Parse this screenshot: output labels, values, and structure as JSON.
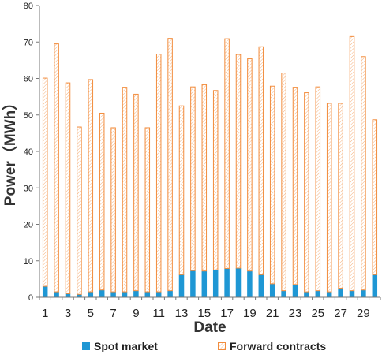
{
  "chart_data": {
    "type": "bar",
    "stacked": true,
    "xlabel": "Date",
    "ylabel": "Power（MWh）",
    "ylim": [
      0,
      80
    ],
    "yticks": [
      0,
      10,
      20,
      30,
      40,
      50,
      60,
      70,
      80
    ],
    "categories": [
      "1",
      "2",
      "3",
      "4",
      "5",
      "6",
      "7",
      "8",
      "9",
      "10",
      "11",
      "12",
      "13",
      "14",
      "15",
      "16",
      "17",
      "18",
      "19",
      "20",
      "21",
      "22",
      "23",
      "24",
      "25",
      "26",
      "27",
      "28",
      "29",
      "30"
    ],
    "xtick_labels_shown": [
      "1",
      "3",
      "5",
      "7",
      "9",
      "11",
      "13",
      "15",
      "17",
      "19",
      "21",
      "23",
      "25",
      "27",
      "29"
    ],
    "series": [
      {
        "name": "Spot market",
        "color": "#1f97d4",
        "values": [
          3,
          1.5,
          1,
          0.8,
          1.5,
          2,
          1.5,
          1.5,
          1.8,
          1.5,
          1.5,
          1.8,
          6.2,
          7.3,
          7.2,
          7.5,
          7.9,
          8,
          7.2,
          6.2,
          3.7,
          1.8,
          3.5,
          1.5,
          1.8,
          1.5,
          2.5,
          1.8,
          2,
          6.2
        ]
      },
      {
        "name": "Forward contracts",
        "color": "#f28c3c",
        "values": [
          57.2,
          68.1,
          57.9,
          46,
          58.3,
          48.6,
          45.1,
          56.2,
          54,
          45.1,
          65.3,
          69.3,
          46.4,
          50.5,
          51.2,
          49.3,
          63.1,
          58.7,
          58.3,
          62.6,
          54.3,
          59.8,
          54.2,
          54.7,
          56,
          51.8,
          50.8,
          69.8,
          64.1,
          42.6
        ]
      }
    ],
    "legend_position": "bottom",
    "grid": false
  }
}
